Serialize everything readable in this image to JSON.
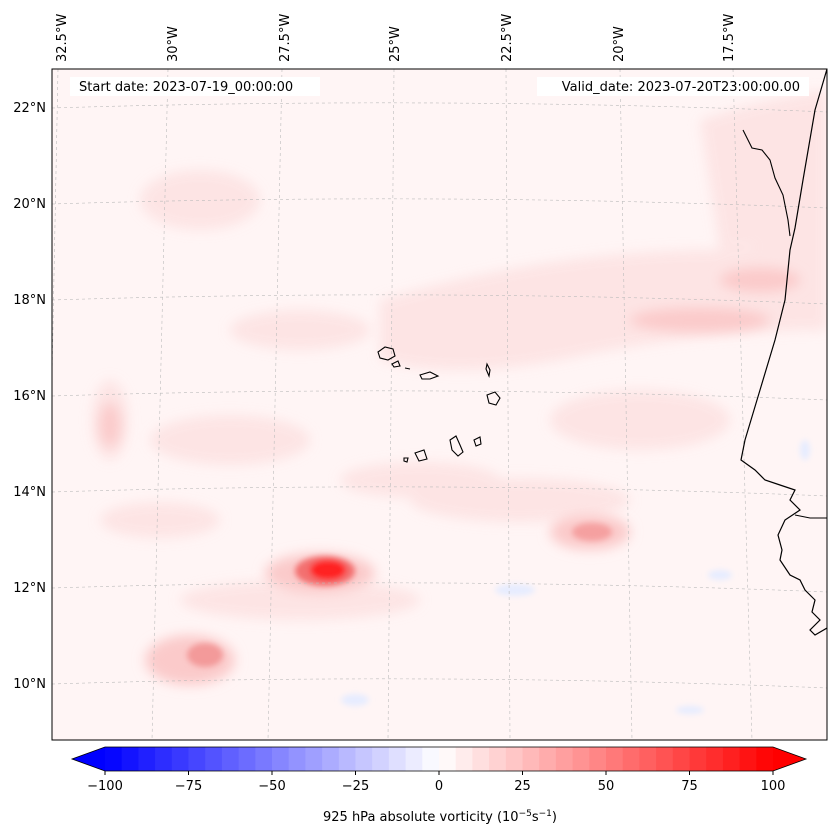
{
  "header": {
    "start_date": "Start date: 2023-07-19_00:00:00",
    "valid_date": "Valid_date: 2023-07-20T23:00:00.00"
  },
  "axes": {
    "lon_labels": [
      "32.5°W",
      "30°W",
      "27.5°W",
      "25°W",
      "22.5°W",
      "20°W",
      "17.5°W"
    ],
    "lat_labels": [
      "22°N",
      "20°N",
      "18°N",
      "16°N",
      "14°N",
      "12°N",
      "10°N"
    ]
  },
  "colorbar": {
    "label_main": "925 hPa absolute vorticity (10",
    "label_exp1": "−5",
    "label_mid": "s",
    "label_exp2": "−1",
    "label_end": ")",
    "ticks": [
      "−100",
      "−75",
      "−50",
      "−25",
      "0",
      "25",
      "50",
      "75",
      "100"
    ],
    "min": -100,
    "max": 100,
    "low_color": "#0000ff",
    "high_color": "#ff0000"
  }
}
